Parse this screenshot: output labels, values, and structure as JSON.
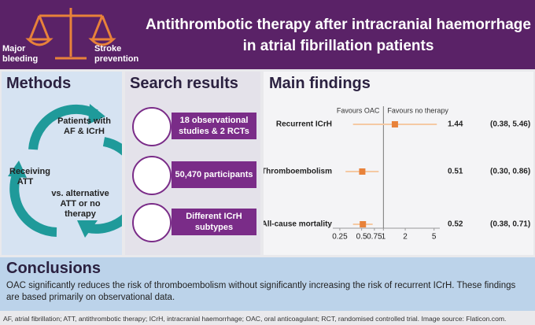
{
  "header": {
    "title": "Antithrombotic therapy after intracranial haemorrhage in atrial fibrillation patients",
    "left_label": "Major bleeding",
    "right_label": "Stroke prevention"
  },
  "methods": {
    "title": "Methods",
    "steps": [
      "Patients with AF & ICrH",
      "Receiving ATT",
      "vs. alternative ATT or no therapy"
    ]
  },
  "search_results": {
    "title": "Search results",
    "items": [
      "18 observational studies & 2 RCTs",
      "50,470 participants",
      "Different ICrH subtypes"
    ]
  },
  "main_findings": {
    "title": "Main findings"
  },
  "chart_data": {
    "type": "forest",
    "categories": [
      "Recurrent ICrH",
      "Thromboembolism",
      "All-cause mortality"
    ],
    "values": [
      1.44,
      0.51,
      0.52
    ],
    "ci_lower": [
      0.38,
      0.3,
      0.38
    ],
    "ci_upper": [
      5.46,
      0.86,
      0.71
    ],
    "ci_labels": [
      "(0.38, 5.46)",
      "(0.30, 0.86)",
      "(0.38, 0.71)"
    ],
    "left_annotation": "Favours OAC",
    "right_annotation": "Favours no therapy",
    "xscale": "log",
    "xlim": [
      0.2,
      6
    ],
    "xticks": [
      0.25,
      0.5,
      0.75,
      1,
      2,
      5
    ],
    "reference": 1,
    "color": "#e8823a",
    "ci_color": "#f5c9a3"
  },
  "conclusions": {
    "title": "Conclusions",
    "text": "OAC significantly reduces the risk of thromboembolism  without significantly increasing the risk of recurrent ICrH. These findings are based primarily on observational data."
  },
  "footer": "AF, atrial fibrillation; ATT, antithrombotic therapy; ICrH, intracranial haemorrhage; OAC, oral anticoagulant; RCT, randomised controlled trial. Image source: Flaticon.com."
}
